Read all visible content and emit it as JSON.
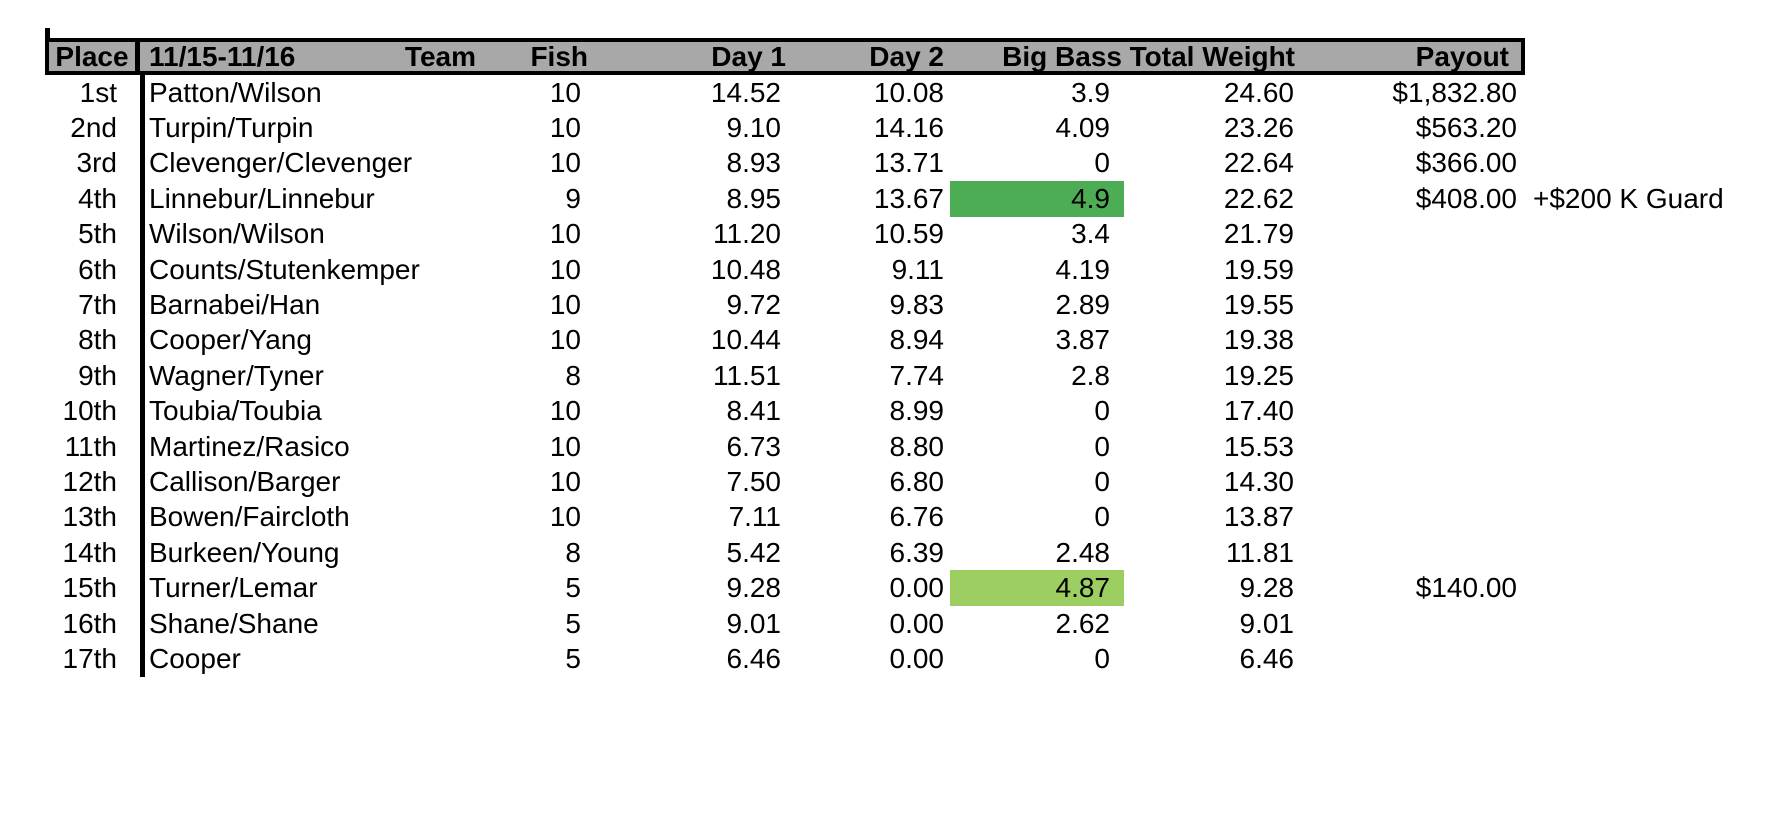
{
  "colors": {
    "header_bg": "#A8A8A8",
    "border": "#000000",
    "big_bass_green": "#4CAD55",
    "big_bass_light_green": "#9CCE62"
  },
  "table": {
    "headers": {
      "place": "Place",
      "date_range": "11/15-11/16",
      "team": "Team",
      "fish": "Fish",
      "day1": "Day 1",
      "day2": "Day 2",
      "big_bass": "Big Bass",
      "total_weight": "Total Weight",
      "payout": "Payout"
    },
    "rows": [
      {
        "place": "1st",
        "team": "Patton/Wilson",
        "fish": "10",
        "day1": "14.52",
        "day2": "10.08",
        "big_bass": "3.9",
        "total_weight": "24.60",
        "payout": "$1,832.80",
        "payout_note": "",
        "big_bass_highlight": ""
      },
      {
        "place": "2nd",
        "team": "Turpin/Turpin",
        "fish": "10",
        "day1": "9.10",
        "day2": "14.16",
        "big_bass": "4.09",
        "total_weight": "23.26",
        "payout": "$563.20",
        "payout_note": "",
        "big_bass_highlight": ""
      },
      {
        "place": "3rd",
        "team": "Clevenger/Clevenger",
        "fish": "10",
        "day1": "8.93",
        "day2": "13.71",
        "big_bass": "0",
        "total_weight": "22.64",
        "payout": "$366.00",
        "payout_note": "",
        "big_bass_highlight": ""
      },
      {
        "place": "4th",
        "team": "Linnebur/Linnebur",
        "fish": "9",
        "day1": "8.95",
        "day2": "13.67",
        "big_bass": "4.9",
        "total_weight": "22.62",
        "payout": "$408.00",
        "payout_note": "+$200 K Guard",
        "big_bass_highlight": "green"
      },
      {
        "place": "5th",
        "team": "Wilson/Wilson",
        "fish": "10",
        "day1": "11.20",
        "day2": "10.59",
        "big_bass": "3.4",
        "total_weight": "21.79",
        "payout": "",
        "payout_note": "",
        "big_bass_highlight": ""
      },
      {
        "place": "6th",
        "team": "Counts/Stutenkemper",
        "fish": "10",
        "day1": "10.48",
        "day2": "9.11",
        "big_bass": "4.19",
        "total_weight": "19.59",
        "payout": "",
        "payout_note": "",
        "big_bass_highlight": ""
      },
      {
        "place": "7th",
        "team": "Barnabei/Han",
        "fish": "10",
        "day1": "9.72",
        "day2": "9.83",
        "big_bass": "2.89",
        "total_weight": "19.55",
        "payout": "",
        "payout_note": "",
        "big_bass_highlight": ""
      },
      {
        "place": "8th",
        "team": "Cooper/Yang",
        "fish": "10",
        "day1": "10.44",
        "day2": "8.94",
        "big_bass": "3.87",
        "total_weight": "19.38",
        "payout": "",
        "payout_note": "",
        "big_bass_highlight": ""
      },
      {
        "place": "9th",
        "team": "Wagner/Tyner",
        "fish": "8",
        "day1": "11.51",
        "day2": "7.74",
        "big_bass": "2.8",
        "total_weight": "19.25",
        "payout": "",
        "payout_note": "",
        "big_bass_highlight": ""
      },
      {
        "place": "10th",
        "team": "Toubia/Toubia",
        "fish": "10",
        "day1": "8.41",
        "day2": "8.99",
        "big_bass": "0",
        "total_weight": "17.40",
        "payout": "",
        "payout_note": "",
        "big_bass_highlight": ""
      },
      {
        "place": "11th",
        "team": "Martinez/Rasico",
        "fish": "10",
        "day1": "6.73",
        "day2": "8.80",
        "big_bass": "0",
        "total_weight": "15.53",
        "payout": "",
        "payout_note": "",
        "big_bass_highlight": ""
      },
      {
        "place": "12th",
        "team": "Callison/Barger",
        "fish": "10",
        "day1": "7.50",
        "day2": "6.80",
        "big_bass": "0",
        "total_weight": "14.30",
        "payout": "",
        "payout_note": "",
        "big_bass_highlight": ""
      },
      {
        "place": "13th",
        "team": "Bowen/Faircloth",
        "fish": "10",
        "day1": "7.11",
        "day2": "6.76",
        "big_bass": "0",
        "total_weight": "13.87",
        "payout": "",
        "payout_note": "",
        "big_bass_highlight": ""
      },
      {
        "place": "14th",
        "team": "Burkeen/Young",
        "fish": "8",
        "day1": "5.42",
        "day2": "6.39",
        "big_bass": "2.48",
        "total_weight": "11.81",
        "payout": "",
        "payout_note": "",
        "big_bass_highlight": ""
      },
      {
        "place": "15th",
        "team": "Turner/Lemar",
        "fish": "5",
        "day1": "9.28",
        "day2": "0.00",
        "big_bass": "4.87",
        "total_weight": "9.28",
        "payout": "$140.00",
        "payout_note": "",
        "big_bass_highlight": "light_green"
      },
      {
        "place": "16th",
        "team": "Shane/Shane",
        "fish": "5",
        "day1": "9.01",
        "day2": "0.00",
        "big_bass": "2.62",
        "total_weight": "9.01",
        "payout": "",
        "payout_note": "",
        "big_bass_highlight": ""
      },
      {
        "place": "17th",
        "team": "Cooper",
        "fish": "5",
        "day1": "6.46",
        "day2": "0.00",
        "big_bass": "0",
        "total_weight": "6.46",
        "payout": "",
        "payout_note": "",
        "big_bass_highlight": ""
      }
    ]
  }
}
